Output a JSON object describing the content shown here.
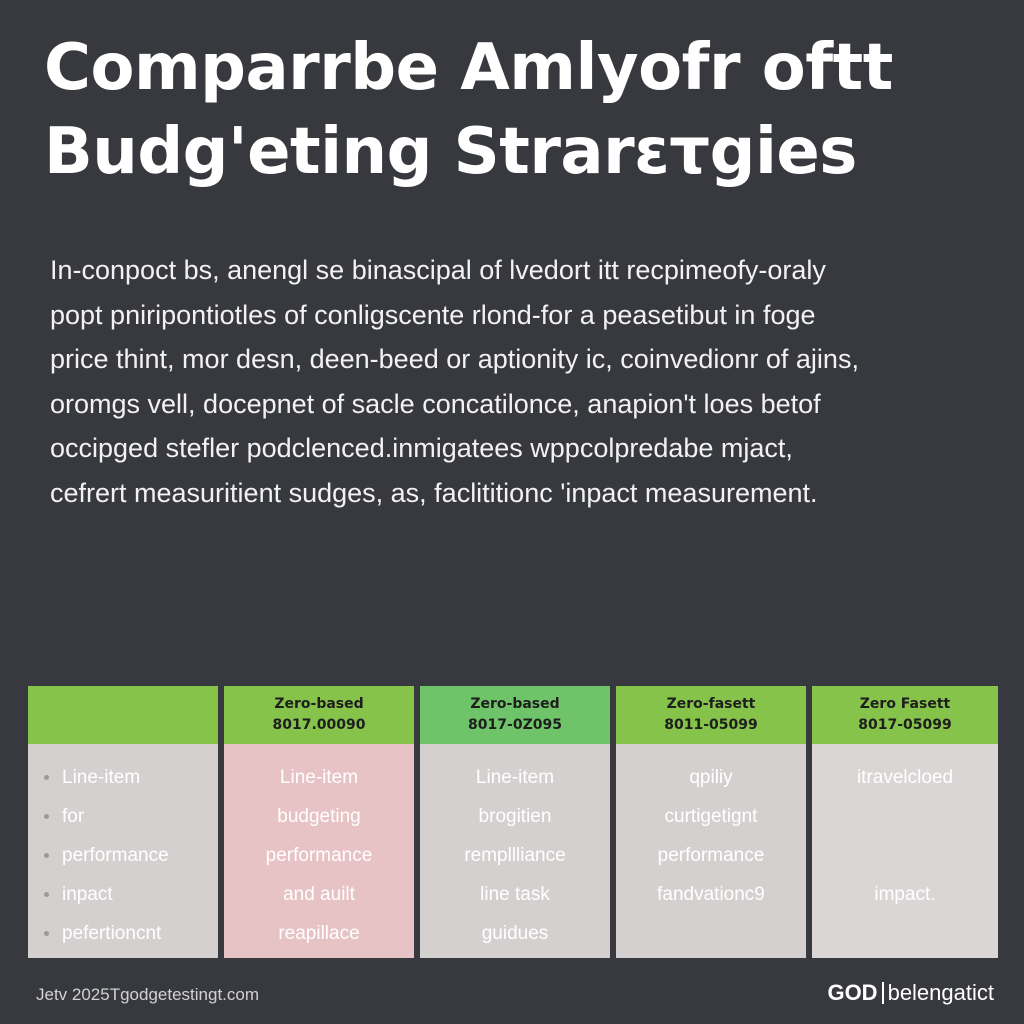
{
  "colors": {
    "background": "#38393e",
    "header_green": "#86c34a",
    "header_green_alt": "#6fc46a",
    "body_gray": "#d5d0d0",
    "body_pink": "#e8c3c5",
    "body_gray_light": "#dbd6d6"
  },
  "title": {
    "line1": "Comparrbe Amlyofr oftt",
    "line2": "Budg'eting Strarετgies"
  },
  "intro": {
    "lines": [
      "In-conpoct bs, anengl se binascipal of lvedort itt recpimeofy-oraly",
      "popt pniripontiotles of conligscente rlond-for a peasetibut in foge",
      "price thint, mor desn, deen-beed or aptionity ic, coinvedionr of ajins,",
      "oromgs vell, docepnet of sacle concatilonce, anapion't loes betof",
      "occipged stefler podclenced.inmigatees wppcolpredabe mjact,",
      "cefrert measuritient sudges, as, faclititionc 'inpact measurement."
    ]
  },
  "table": {
    "columns": [
      {
        "header_line1": "",
        "header_line2": "",
        "cells": [
          "Line-item",
          "for",
          "performance",
          "inpact",
          "pefertioncnt"
        ]
      },
      {
        "header_line1": "Zero-based",
        "header_line2": "8017.00090",
        "cells": [
          "Line-item",
          "budgeting",
          "performance",
          "and auilt",
          "reapillace"
        ]
      },
      {
        "header_line1": "Zero-based",
        "header_line2": "8017-0Z095",
        "cells": [
          "Line-item",
          "brogitien",
          "rempllliance",
          "line task",
          "guidues"
        ]
      },
      {
        "header_line1": "Zero-fasett",
        "header_line2": "8011-05099",
        "cells": [
          "qpiliy",
          "curtigetignt",
          "performance",
          "fandvationc9",
          ""
        ]
      },
      {
        "header_line1": "Zero Fasett",
        "header_line2": "8017-05099",
        "cells": [
          "itravelcloed",
          "",
          "",
          "impact.",
          ""
        ]
      }
    ]
  },
  "footer": {
    "left_text": "Jetv 2025Tgodgetestingt.com",
    "brand": "GOD",
    "right_text": "belengatict"
  }
}
